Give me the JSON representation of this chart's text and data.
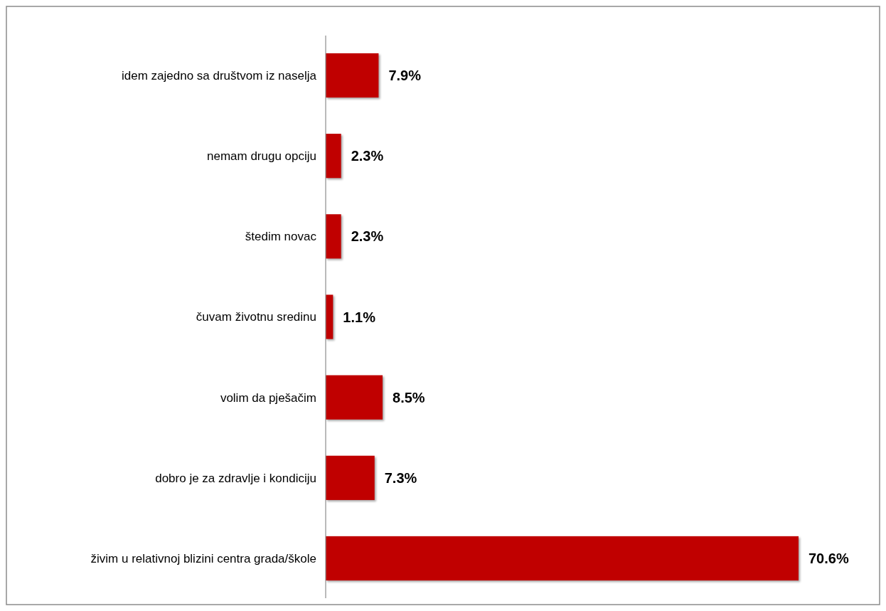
{
  "chart_data": {
    "type": "bar",
    "orientation": "horizontal",
    "categories": [
      "idem zajedno sa društvom iz naselja",
      "nemam drugu opciju",
      "štedim novac",
      "čuvam životnu sredinu",
      "volim da pješačim",
      "dobro je za zdravlje i kondiciju",
      "živim u relativnoj blizini centra grada/škole"
    ],
    "values": [
      7.9,
      2.3,
      2.3,
      1.1,
      8.5,
      7.3,
      70.6
    ],
    "value_labels": [
      "7.9%",
      "2.3%",
      "2.3%",
      "1.1%",
      "8.5%",
      "7.3%",
      "70.6%"
    ],
    "color": "#c00000",
    "tick_labels": "y"
  }
}
